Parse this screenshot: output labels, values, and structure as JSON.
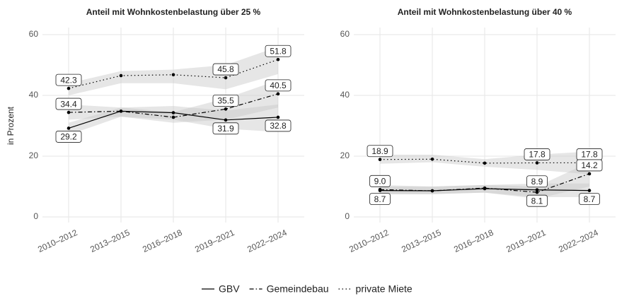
{
  "chart_data": [
    {
      "type": "line",
      "title": "Anteil mit Wohnkostenbelastung über 25 %",
      "y_label": "in Prozent",
      "categories": [
        "2010–2012",
        "2013–2015",
        "2016–2018",
        "2019–2021",
        "2022–2024"
      ],
      "ylim": [
        0,
        60
      ],
      "yticks": [
        0,
        20,
        40,
        60
      ],
      "grid": true,
      "series": [
        {
          "name": "GBV",
          "color": "#000000",
          "dash": "solid",
          "values": [
            29.2,
            34.8,
            34.3,
            31.9,
            32.8
          ],
          "lower": [
            27,
            33,
            32,
            29,
            28
          ],
          "upper": [
            31,
            36,
            36.5,
            35,
            37
          ],
          "value_labels": [
            "29.2",
            null,
            null,
            "31.9",
            "32.8"
          ]
        },
        {
          "name": "Gemeindebau",
          "color": "#000000",
          "dash": "dashdot",
          "values": [
            34.4,
            34.8,
            32.8,
            35.5,
            40.5
          ],
          "lower": [
            32,
            33,
            31,
            32,
            36
          ],
          "upper": [
            37,
            36,
            34.5,
            39,
            45
          ],
          "value_labels": [
            "34.4",
            null,
            null,
            "35.5",
            "40.5"
          ]
        },
        {
          "name": "private Miete",
          "color": "#000000",
          "dash": "dotted",
          "values": [
            42.3,
            46.5,
            46.8,
            45.8,
            51.8
          ],
          "lower": [
            40,
            44,
            44,
            42,
            47
          ],
          "upper": [
            44,
            48,
            48.5,
            50,
            56
          ],
          "value_labels": [
            "42.3",
            null,
            null,
            "45.8",
            "51.8"
          ]
        }
      ]
    },
    {
      "type": "line",
      "title": "Anteil mit Wohnkostenbelastung über 40 %",
      "categories": [
        "2010–2012",
        "2013–2015",
        "2016–2018",
        "2019–2021",
        "2022–2024"
      ],
      "ylim": [
        0,
        60
      ],
      "yticks": [
        0,
        20,
        40,
        60
      ],
      "grid": true,
      "series": [
        {
          "name": "GBV",
          "color": "#000000",
          "dash": "solid",
          "values": [
            8.7,
            8.6,
            9.3,
            8.9,
            8.7
          ],
          "lower": [
            7.5,
            7.5,
            8,
            6.5,
            6.5
          ],
          "upper": [
            10,
            10,
            10.5,
            11,
            11
          ],
          "value_labels": [
            "8.7",
            null,
            null,
            "8.9",
            "8.7"
          ]
        },
        {
          "name": "Gemeindebau",
          "color": "#000000",
          "dash": "dashdot",
          "values": [
            9.0,
            8.6,
            9.5,
            8.1,
            14.2
          ],
          "lower": [
            7.5,
            7.5,
            8,
            6,
            10
          ],
          "upper": [
            10.5,
            10,
            10.5,
            10,
            18
          ],
          "value_labels": [
            "9.0",
            null,
            null,
            "8.1",
            "14.2"
          ]
        },
        {
          "name": "private Miete",
          "color": "#000000",
          "dash": "dotted",
          "values": [
            18.9,
            19.0,
            17.7,
            17.8,
            17.8
          ],
          "lower": [
            17.5,
            18,
            16.5,
            15.5,
            14
          ],
          "upper": [
            20.5,
            20.5,
            19,
            20.5,
            21.5
          ],
          "value_labels": [
            "18.9",
            null,
            null,
            "17.8",
            "17.8"
          ]
        }
      ]
    }
  ]
}
